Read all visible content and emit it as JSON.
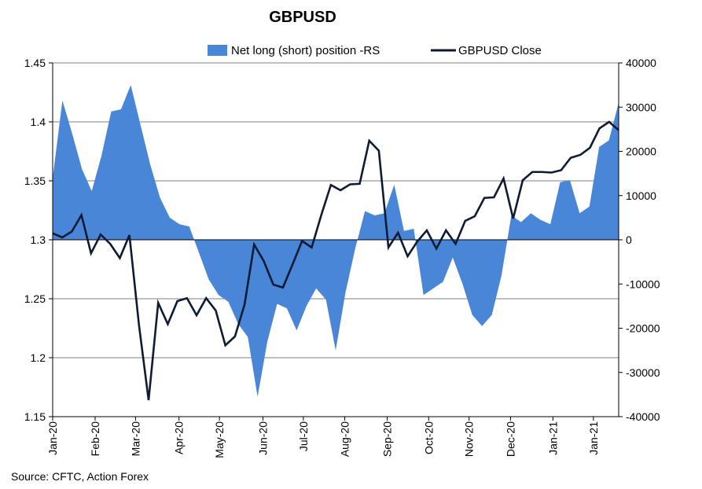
{
  "chart_data": {
    "type": "line",
    "title": "GBPUSD",
    "source": "Source: CFTC, Action Forex",
    "left_axis": {
      "min": 1.15,
      "max": 1.45,
      "ticks": [
        "1.15",
        "1.2",
        "1.25",
        "1.3",
        "1.35",
        "1.4",
        "1.45"
      ],
      "tick_values": [
        1.15,
        1.2,
        1.25,
        1.3,
        1.35,
        1.4,
        1.45
      ]
    },
    "right_axis": {
      "min": -40000,
      "max": 40000,
      "ticks": [
        "-40000",
        "-30000",
        "-20000",
        "-10000",
        "0",
        "10000",
        "20000",
        "30000",
        "40000"
      ],
      "tick_values": [
        -40000,
        -30000,
        -20000,
        -10000,
        0,
        10000,
        20000,
        30000,
        40000
      ]
    },
    "x_labels": [
      "Jan-20",
      "Feb-20",
      "Mar-20",
      "Apr-20",
      "May-20",
      "Jun-20",
      "Jul-20",
      "Aug-20",
      "Sep-20",
      "Oct-20",
      "Nov-20",
      "Dec-20",
      "Jan-21",
      "Jan-21"
    ],
    "x_label_weeks": [
      0,
      4.2,
      8.2,
      12.5,
      16.5,
      20.8,
      24.8,
      28.9,
      33.1,
      37.2,
      41.2,
      45.3,
      49.5,
      53.5
    ],
    "weeks": 56,
    "legend": {
      "area_label": "Net long (short) position -RS",
      "line_label": "GBPUSD Close"
    },
    "colors": {
      "area": "#4a86d8",
      "line": "#0d1b33",
      "grid": "#808080",
      "axis": "#000000"
    },
    "series": [
      {
        "name": "Net long (short) position -RS",
        "axis": "right",
        "kind": "area",
        "values": [
          14000,
          31500,
          24000,
          16000,
          11000,
          19000,
          29000,
          29500,
          35000,
          26000,
          17000,
          9500,
          5000,
          3500,
          3000,
          -3000,
          -9000,
          -12500,
          -14000,
          -19000,
          -22000,
          -35500,
          -23000,
          -14500,
          -15500,
          -20500,
          -15000,
          -11000,
          -13500,
          -25000,
          -12000,
          -2000,
          6500,
          5500,
          6000,
          12500,
          2000,
          2500,
          -12500,
          -11000,
          -9500,
          -4000,
          -10000,
          -17000,
          -19500,
          -17000,
          -8000,
          5500,
          4000,
          6000,
          4500,
          3500,
          13000,
          13500,
          6000,
          7500,
          21000,
          22500,
          31000
        ],
        "x_start": 0
      },
      {
        "name": "GBPUSD Close",
        "axis": "left",
        "kind": "line",
        "values": [
          1.3055,
          1.302,
          1.307,
          1.321,
          1.2885,
          1.3045,
          1.2965,
          1.2845,
          1.304,
          1.2275,
          1.164,
          1.2465,
          1.2285,
          1.248,
          1.2505,
          1.236,
          1.2505,
          1.24,
          1.2105,
          1.218,
          1.245,
          1.296,
          1.282,
          1.262,
          1.2595,
          1.279,
          1.299,
          1.2935,
          1.321,
          1.3465,
          1.342,
          1.347,
          1.3475,
          1.384,
          1.3755,
          1.2935,
          1.306,
          1.286,
          1.2985,
          1.308,
          1.2925,
          1.308,
          1.2965,
          1.316,
          1.32,
          1.3355,
          1.336,
          1.352,
          1.318,
          1.3505,
          1.3575,
          1.3575,
          1.357,
          1.359,
          1.3695,
          1.372,
          1.378,
          1.3945,
          1.4,
          1.393
        ],
        "x_start": 0
      }
    ]
  }
}
